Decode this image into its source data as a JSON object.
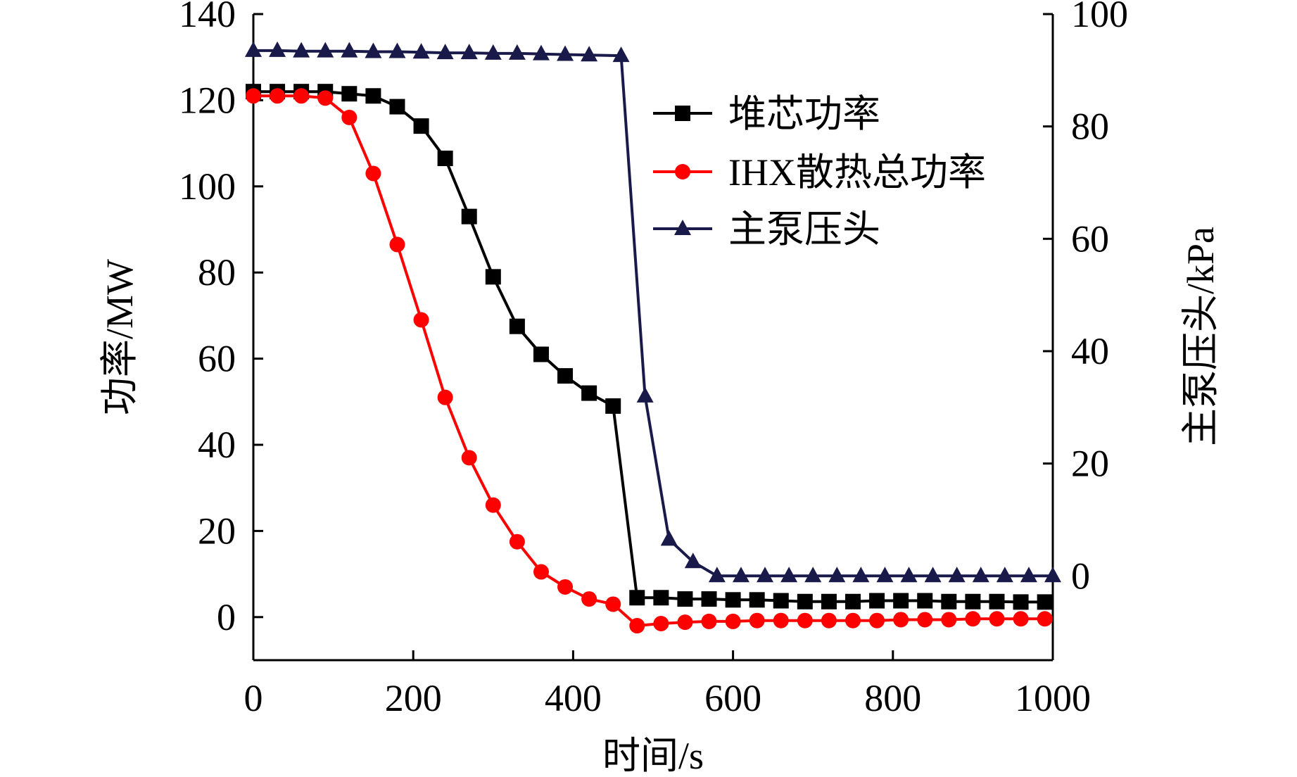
{
  "chart_data": {
    "type": "line",
    "title": "",
    "xlabel": "时间/s",
    "ylabel_left": "功率/MW",
    "ylabel_right": "主泵压头/kPa",
    "xlim": [
      0,
      1000
    ],
    "ylim_left": [
      -10,
      140
    ],
    "ylim_right": [
      -15,
      100
    ],
    "x_ticks": [
      0,
      200,
      400,
      600,
      800,
      1000
    ],
    "x_tick_labels": [
      "0",
      "200",
      "400",
      "600",
      "800",
      "1000"
    ],
    "y_left_ticks": [
      0,
      20,
      40,
      60,
      80,
      100,
      120,
      140
    ],
    "y_left_tick_labels": [
      "0",
      "20",
      "40",
      "60",
      "80",
      "100",
      "120",
      "140"
    ],
    "y_right_ticks": [
      0,
      20,
      40,
      60,
      80,
      100
    ],
    "y_right_tick_labels": [
      "0",
      "20",
      "40",
      "60",
      "80",
      "100"
    ],
    "grid": false,
    "legend_position": "top-right",
    "series": [
      {
        "name": "堆芯功率",
        "axis": "left",
        "color": "#000000",
        "marker": "square",
        "x": [
          0,
          30,
          60,
          90,
          120,
          150,
          180,
          210,
          240,
          270,
          300,
          330,
          360,
          390,
          420,
          450,
          480,
          510,
          540,
          570,
          600,
          630,
          660,
          690,
          720,
          750,
          780,
          810,
          840,
          870,
          900,
          930,
          960,
          990
        ],
        "values": [
          122,
          122,
          122,
          122,
          121.5,
          121,
          118.5,
          114,
          106.5,
          93,
          79,
          67.5,
          61,
          56,
          52,
          49,
          4.5,
          4.5,
          4.2,
          4.2,
          4,
          4,
          3.8,
          3.6,
          3.6,
          3.6,
          3.8,
          3.8,
          3.8,
          3.6,
          3.6,
          3.6,
          3.5,
          3.5
        ]
      },
      {
        "name": "IHX散热总功率",
        "axis": "left",
        "color": "#ff0000",
        "marker": "circle",
        "x": [
          0,
          30,
          60,
          90,
          120,
          150,
          180,
          210,
          240,
          270,
          300,
          330,
          360,
          390,
          420,
          450,
          480,
          510,
          540,
          570,
          600,
          630,
          660,
          690,
          720,
          750,
          780,
          810,
          840,
          870,
          900,
          930,
          960,
          990
        ],
        "values": [
          121,
          121,
          121,
          120.5,
          116,
          103,
          86.5,
          69,
          51,
          37,
          26,
          17.5,
          10.5,
          7,
          4.2,
          3,
          -2,
          -1.5,
          -1.2,
          -1,
          -1,
          -0.8,
          -0.8,
          -0.8,
          -0.8,
          -0.8,
          -0.8,
          -0.6,
          -0.6,
          -0.6,
          -0.4,
          -0.4,
          -0.4,
          -0.4
        ]
      },
      {
        "name": "主泵压头",
        "axis": "right",
        "color": "#1a1a4a",
        "marker": "triangle",
        "x": [
          0,
          30,
          60,
          90,
          120,
          150,
          180,
          210,
          240,
          270,
          300,
          330,
          360,
          390,
          420,
          460,
          490,
          520,
          550,
          580,
          610,
          640,
          670,
          700,
          730,
          760,
          790,
          820,
          850,
          880,
          910,
          940,
          970,
          1000
        ],
        "values": [
          93.5,
          93.5,
          93.4,
          93.4,
          93.4,
          93.3,
          93.3,
          93.2,
          93.1,
          93.1,
          93,
          93,
          92.9,
          92.8,
          92.7,
          92.6,
          32,
          6.5,
          2.5,
          0,
          0,
          0,
          0,
          0,
          0,
          0,
          0,
          0,
          0,
          0,
          0,
          0,
          0,
          0
        ]
      }
    ]
  }
}
